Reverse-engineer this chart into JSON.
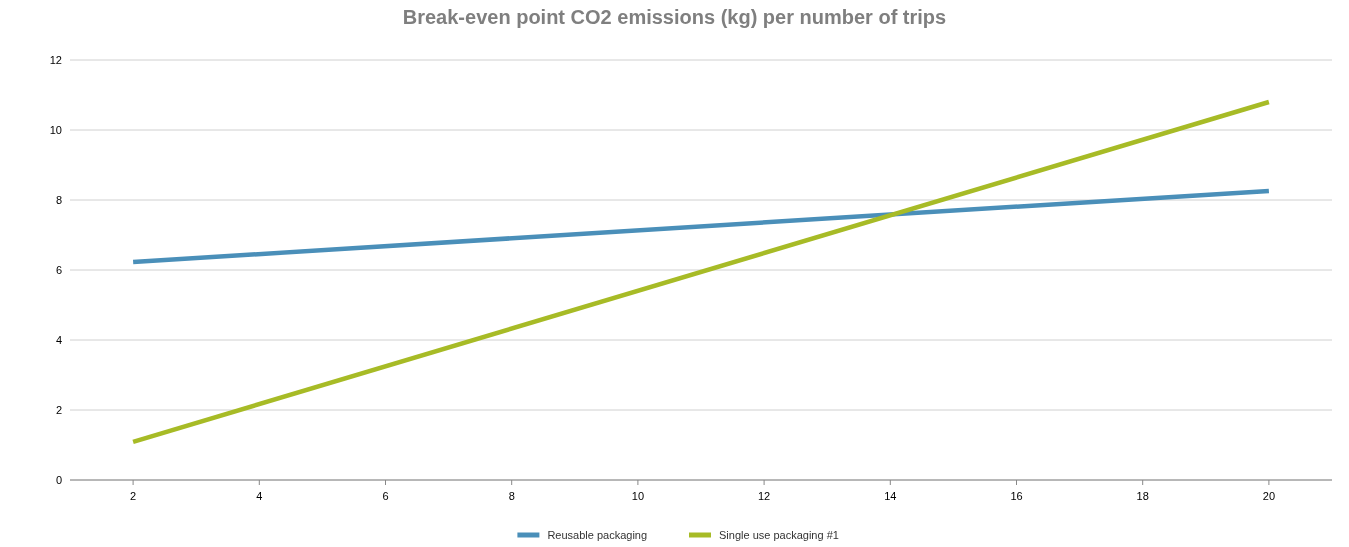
{
  "chart_data": {
    "type": "line",
    "title": "Break-even point CO2 emissions (kg) per number of trips",
    "xlim": [
      1,
      21
    ],
    "xticks": [
      2,
      4,
      6,
      8,
      10,
      12,
      14,
      16,
      18,
      20
    ],
    "ylim": [
      0,
      12
    ],
    "yticks": [
      0,
      2,
      4,
      6,
      8,
      10,
      12
    ],
    "x": [
      2,
      20
    ],
    "grid": "y",
    "legend": "bottom",
    "line_style": "solid",
    "marker": "none",
    "series": [
      {
        "name": "Reusable packaging",
        "color": "#4a8fb9",
        "values": [
          6.23,
          8.26
        ]
      },
      {
        "name": "Single use packaging #1",
        "color": "#a7bb26",
        "values": [
          1.09,
          10.8
        ]
      }
    ]
  }
}
